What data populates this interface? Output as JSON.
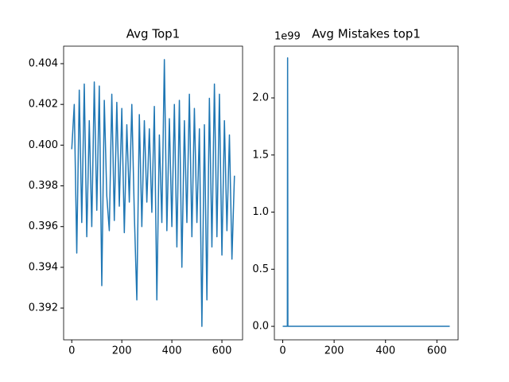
{
  "chart_data": [
    {
      "type": "line",
      "title": "Avg Top1",
      "x": [
        0,
        10,
        20,
        30,
        40,
        50,
        60,
        70,
        80,
        90,
        100,
        110,
        120,
        130,
        140,
        150,
        160,
        170,
        180,
        190,
        200,
        210,
        220,
        230,
        240,
        250,
        260,
        270,
        280,
        290,
        300,
        310,
        320,
        330,
        340,
        350,
        360,
        370,
        380,
        390,
        400,
        410,
        420,
        430,
        440,
        450,
        460,
        470,
        480,
        490,
        500,
        510,
        520,
        530,
        540,
        550,
        560,
        570,
        580,
        590,
        600,
        610,
        620,
        630,
        640,
        650
      ],
      "series": [
        {
          "color": "#1f77b4",
          "values": [
            0.3998,
            0.402,
            0.3947,
            0.4027,
            0.3962,
            0.403,
            0.3955,
            0.4012,
            0.396,
            0.4031,
            0.3968,
            0.4029,
            0.3931,
            0.4022,
            0.3975,
            0.3958,
            0.4025,
            0.3963,
            0.4021,
            0.397,
            0.4018,
            0.3957,
            0.401,
            0.3972,
            0.402,
            0.3966,
            0.3924,
            0.4015,
            0.396,
            0.4012,
            0.3972,
            0.4008,
            0.3967,
            0.4019,
            0.3924,
            0.4005,
            0.3962,
            0.4042,
            0.3958,
            0.4013,
            0.396,
            0.402,
            0.395,
            0.4022,
            0.394,
            0.4012,
            0.3962,
            0.4025,
            0.3955,
            0.4018,
            0.3962,
            0.4008,
            0.3911,
            0.401,
            0.3924,
            0.4023,
            0.395,
            0.403,
            0.3955,
            0.4025,
            0.3946,
            0.4012,
            0.3958,
            0.4005,
            0.3944,
            0.3985
          ]
        }
      ],
      "xlim": [
        -32.5,
        682.5
      ],
      "xticks": [
        0,
        200,
        400,
        600
      ],
      "ylim": [
        0.39044,
        0.40486
      ],
      "yticks": [
        0.392,
        0.394,
        0.396,
        0.398,
        {
          "value": 0.4,
          "label": "0.400"
        },
        0.402,
        0.404
      ]
    },
    {
      "type": "line",
      "title": "Avg Mistakes top1",
      "offset_label": "1e99",
      "x": [
        0,
        18,
        19,
        20,
        650
      ],
      "series": [
        {
          "color": "#1f77b4",
          "values": [
            0,
            0,
            2.35,
            0,
            0
          ]
        }
      ],
      "xlim": [
        -32.5,
        682.5
      ],
      "xticks": [
        0,
        200,
        400,
        600
      ],
      "ylim": [
        -0.118,
        2.453
      ],
      "yticks": [
        {
          "value": 0,
          "label": "0.0"
        },
        0.5,
        {
          "value": 1,
          "label": "1.0"
        },
        1.5,
        {
          "value": 2,
          "label": "2.0"
        }
      ]
    }
  ]
}
